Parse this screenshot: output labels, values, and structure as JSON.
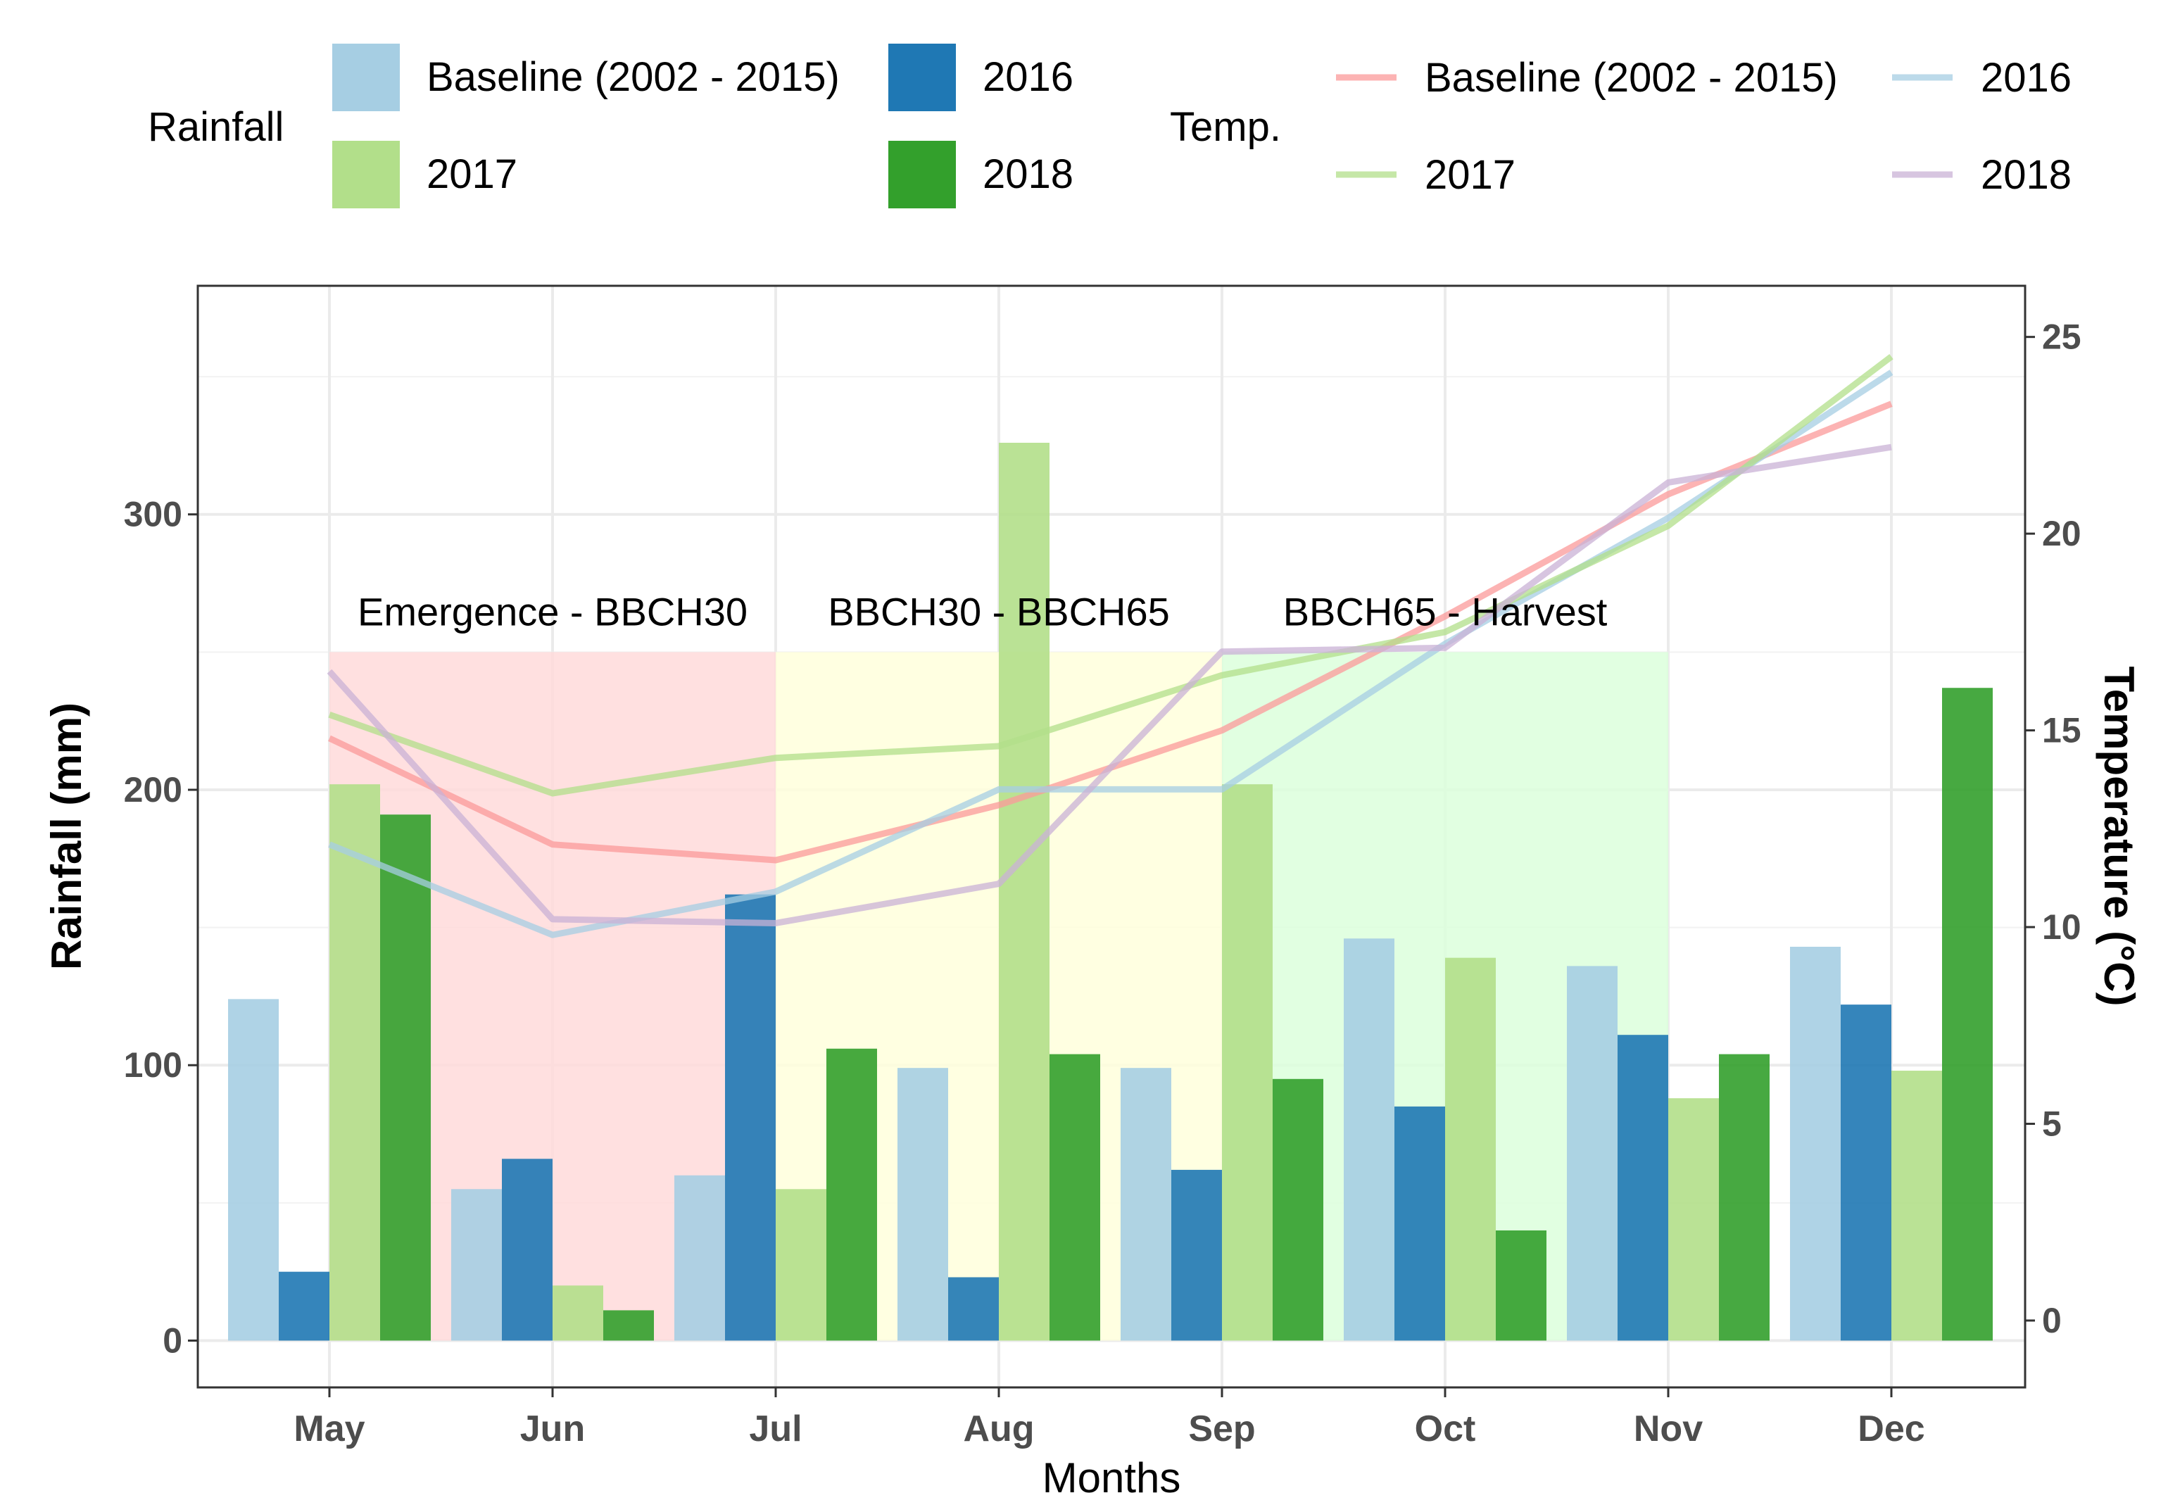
{
  "chart_data": {
    "type": "bar",
    "xlabel": "Months",
    "ylabel": "Rainfall (mm)",
    "y2label": "Temperature (°C)",
    "ylim": [
      -17,
      383
    ],
    "y2lim": [
      -1.7,
      26.3
    ],
    "y_ticks": [
      0,
      100,
      200,
      300
    ],
    "y2_ticks": [
      0,
      5,
      10,
      15,
      20,
      25
    ],
    "grid": true,
    "categories": [
      "May",
      "Jun",
      "Jul",
      "Aug",
      "Sep",
      "Oct",
      "Nov",
      "Dec"
    ],
    "rainfall_legend_title": "Rainfall",
    "rainfall": [
      {
        "name": "Baseline (2002 - 2015)",
        "color": "#a6cee3",
        "values": [
          124,
          55,
          60,
          99,
          99,
          146,
          136,
          143
        ]
      },
      {
        "name": "2016",
        "color": "#1f78b4",
        "values": [
          25,
          66,
          162,
          23,
          62,
          85,
          111,
          122
        ]
      },
      {
        "name": "2017",
        "color": "#b2df8a",
        "values": [
          202,
          20,
          55,
          326,
          202,
          139,
          88,
          98
        ]
      },
      {
        "name": "2018",
        "color": "#33a02c",
        "values": [
          191,
          11,
          106,
          104,
          95,
          40,
          104,
          237
        ]
      }
    ],
    "temp_legend_title": "Temp.",
    "temperature": [
      {
        "name": "Baseline (2002 - 2015)",
        "color": "#fb9a99",
        "values": [
          14.8,
          12.1,
          11.7,
          13.1,
          15.0,
          17.9,
          21.0,
          23.3
        ]
      },
      {
        "name": "2016",
        "color": "#a6cee3",
        "values": [
          12.1,
          9.8,
          10.9,
          13.5,
          13.5,
          17.2,
          20.4,
          24.1
        ]
      },
      {
        "name": "2017",
        "color": "#b2df8a",
        "values": [
          15.4,
          13.4,
          14.3,
          14.6,
          16.4,
          17.5,
          20.2,
          24.5
        ]
      },
      {
        "name": "2018",
        "color": "#cab2d6",
        "values": [
          16.5,
          10.2,
          10.1,
          11.1,
          17.0,
          17.1,
          21.3,
          22.2
        ]
      }
    ],
    "stages": [
      {
        "label": "Emergence - BBCH30",
        "from": "May",
        "to": "Jul",
        "color": "#ffdada",
        "top": 250
      },
      {
        "label": "BBCH30 - BBCH65",
        "from": "Jul",
        "to": "Sep",
        "color": "#ffffdc",
        "top": 250
      },
      {
        "label": "BBCH65 - Harvest",
        "from": "Sep",
        "to": "Nov",
        "color": "#dcffdc",
        "top": 250
      }
    ]
  }
}
